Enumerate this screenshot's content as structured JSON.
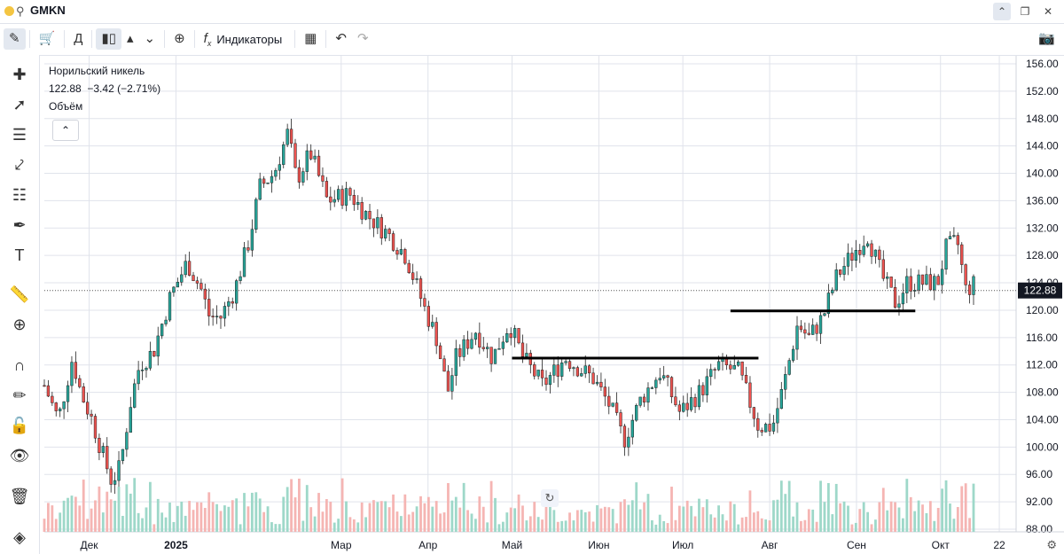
{
  "header": {
    "symbol": "GMKN",
    "toolbar": {
      "interval_label": "Д",
      "indicators_label": "Индикаторы"
    }
  },
  "legend": {
    "title": "Норильский никель",
    "price": "122.88",
    "change": "−3.42 (−2.71%)",
    "volume_label": "Объём"
  },
  "colors": {
    "up": "#26a69a",
    "down": "#ef5350",
    "vol_up": "#9ed8c9",
    "vol_down": "#f5b5b3",
    "line": "#000000",
    "grid": "#e0e3eb"
  },
  "chart_data": {
    "type": "candlestick",
    "title": "",
    "y_axis": {
      "min": 88,
      "max": 156,
      "step": 4,
      "side": "right",
      "ticks": [
        "156.00",
        "152.00",
        "148.00",
        "144.00",
        "140.00",
        "136.00",
        "132.00",
        "128.00",
        "124.00",
        "120.00",
        "116.00",
        "112.00",
        "108.00",
        "104.00",
        "100.00",
        "96.00",
        "92.00",
        "88.00"
      ]
    },
    "x_axis": {
      "labels": [
        "Дек",
        "2025",
        "Мар",
        "Апр",
        "Май",
        "Июн",
        "Июл",
        "Авг",
        "Сен",
        "Окт",
        "22"
      ]
    },
    "last_price": 122.88,
    "last_price_label": "122.88",
    "support_lines": [
      {
        "from": "2025-05-01",
        "to": "2025-07-28",
        "value": 113
      },
      {
        "from": "2025-07-18",
        "to": "2025-09-22",
        "value": 119.9
      }
    ],
    "price_path": [
      [
        "2024-11-15",
        109
      ],
      [
        "2024-11-20",
        104
      ],
      [
        "2024-11-25",
        113
      ],
      [
        "2024-11-28",
        108
      ],
      [
        "2024-12-02",
        104
      ],
      [
        "2024-12-05",
        100
      ],
      [
        "2024-12-09",
        95
      ],
      [
        "2024-12-12",
        97
      ],
      [
        "2024-12-16",
        107
      ],
      [
        "2024-12-19",
        112
      ],
      [
        "2024-12-24",
        114
      ],
      [
        "2024-12-30",
        122
      ],
      [
        "2025-01-05",
        127
      ],
      [
        "2025-01-10",
        123
      ],
      [
        "2025-01-13",
        119
      ],
      [
        "2025-01-17",
        119
      ],
      [
        "2025-01-22",
        123
      ],
      [
        "2025-01-27",
        130
      ],
      [
        "2025-01-31",
        138
      ],
      [
        "2025-02-05",
        140
      ],
      [
        "2025-02-10",
        146
      ],
      [
        "2025-02-13",
        139
      ],
      [
        "2025-02-18",
        143
      ],
      [
        "2025-02-24",
        136
      ],
      [
        "2025-03-04",
        137
      ],
      [
        "2025-03-10",
        134
      ],
      [
        "2025-03-18",
        131
      ],
      [
        "2025-03-24",
        128
      ],
      [
        "2025-03-31",
        120
      ],
      [
        "2025-04-04",
        116
      ],
      [
        "2025-04-08",
        108
      ],
      [
        "2025-04-11",
        113
      ],
      [
        "2025-04-18",
        117
      ],
      [
        "2025-04-24",
        113
      ],
      [
        "2025-04-30",
        118
      ],
      [
        "2025-05-05",
        113
      ],
      [
        "2025-05-12",
        109
      ],
      [
        "2025-05-20",
        113
      ],
      [
        "2025-05-30",
        110
      ],
      [
        "2025-06-05",
        106
      ],
      [
        "2025-06-10",
        101
      ],
      [
        "2025-06-16",
        107
      ],
      [
        "2025-06-23",
        111
      ],
      [
        "2025-06-30",
        105
      ],
      [
        "2025-07-07",
        108
      ],
      [
        "2025-07-14",
        112
      ],
      [
        "2025-07-21",
        111
      ],
      [
        "2025-07-28",
        103
      ],
      [
        "2025-08-02",
        103
      ],
      [
        "2025-08-06",
        109
      ],
      [
        "2025-08-11",
        118
      ],
      [
        "2025-08-15",
        116
      ],
      [
        "2025-08-20",
        119
      ],
      [
        "2025-08-25",
        125
      ],
      [
        "2025-09-01",
        129
      ],
      [
        "2025-09-05",
        131
      ],
      [
        "2025-09-10",
        125
      ],
      [
        "2025-09-15",
        121
      ],
      [
        "2025-09-19",
        124
      ],
      [
        "2025-09-24",
        124
      ],
      [
        "2025-09-30",
        124
      ],
      [
        "2025-10-03",
        129
      ],
      [
        "2025-10-07",
        130
      ],
      [
        "2025-10-10",
        123
      ],
      [
        "2025-10-14",
        124
      ]
    ]
  }
}
